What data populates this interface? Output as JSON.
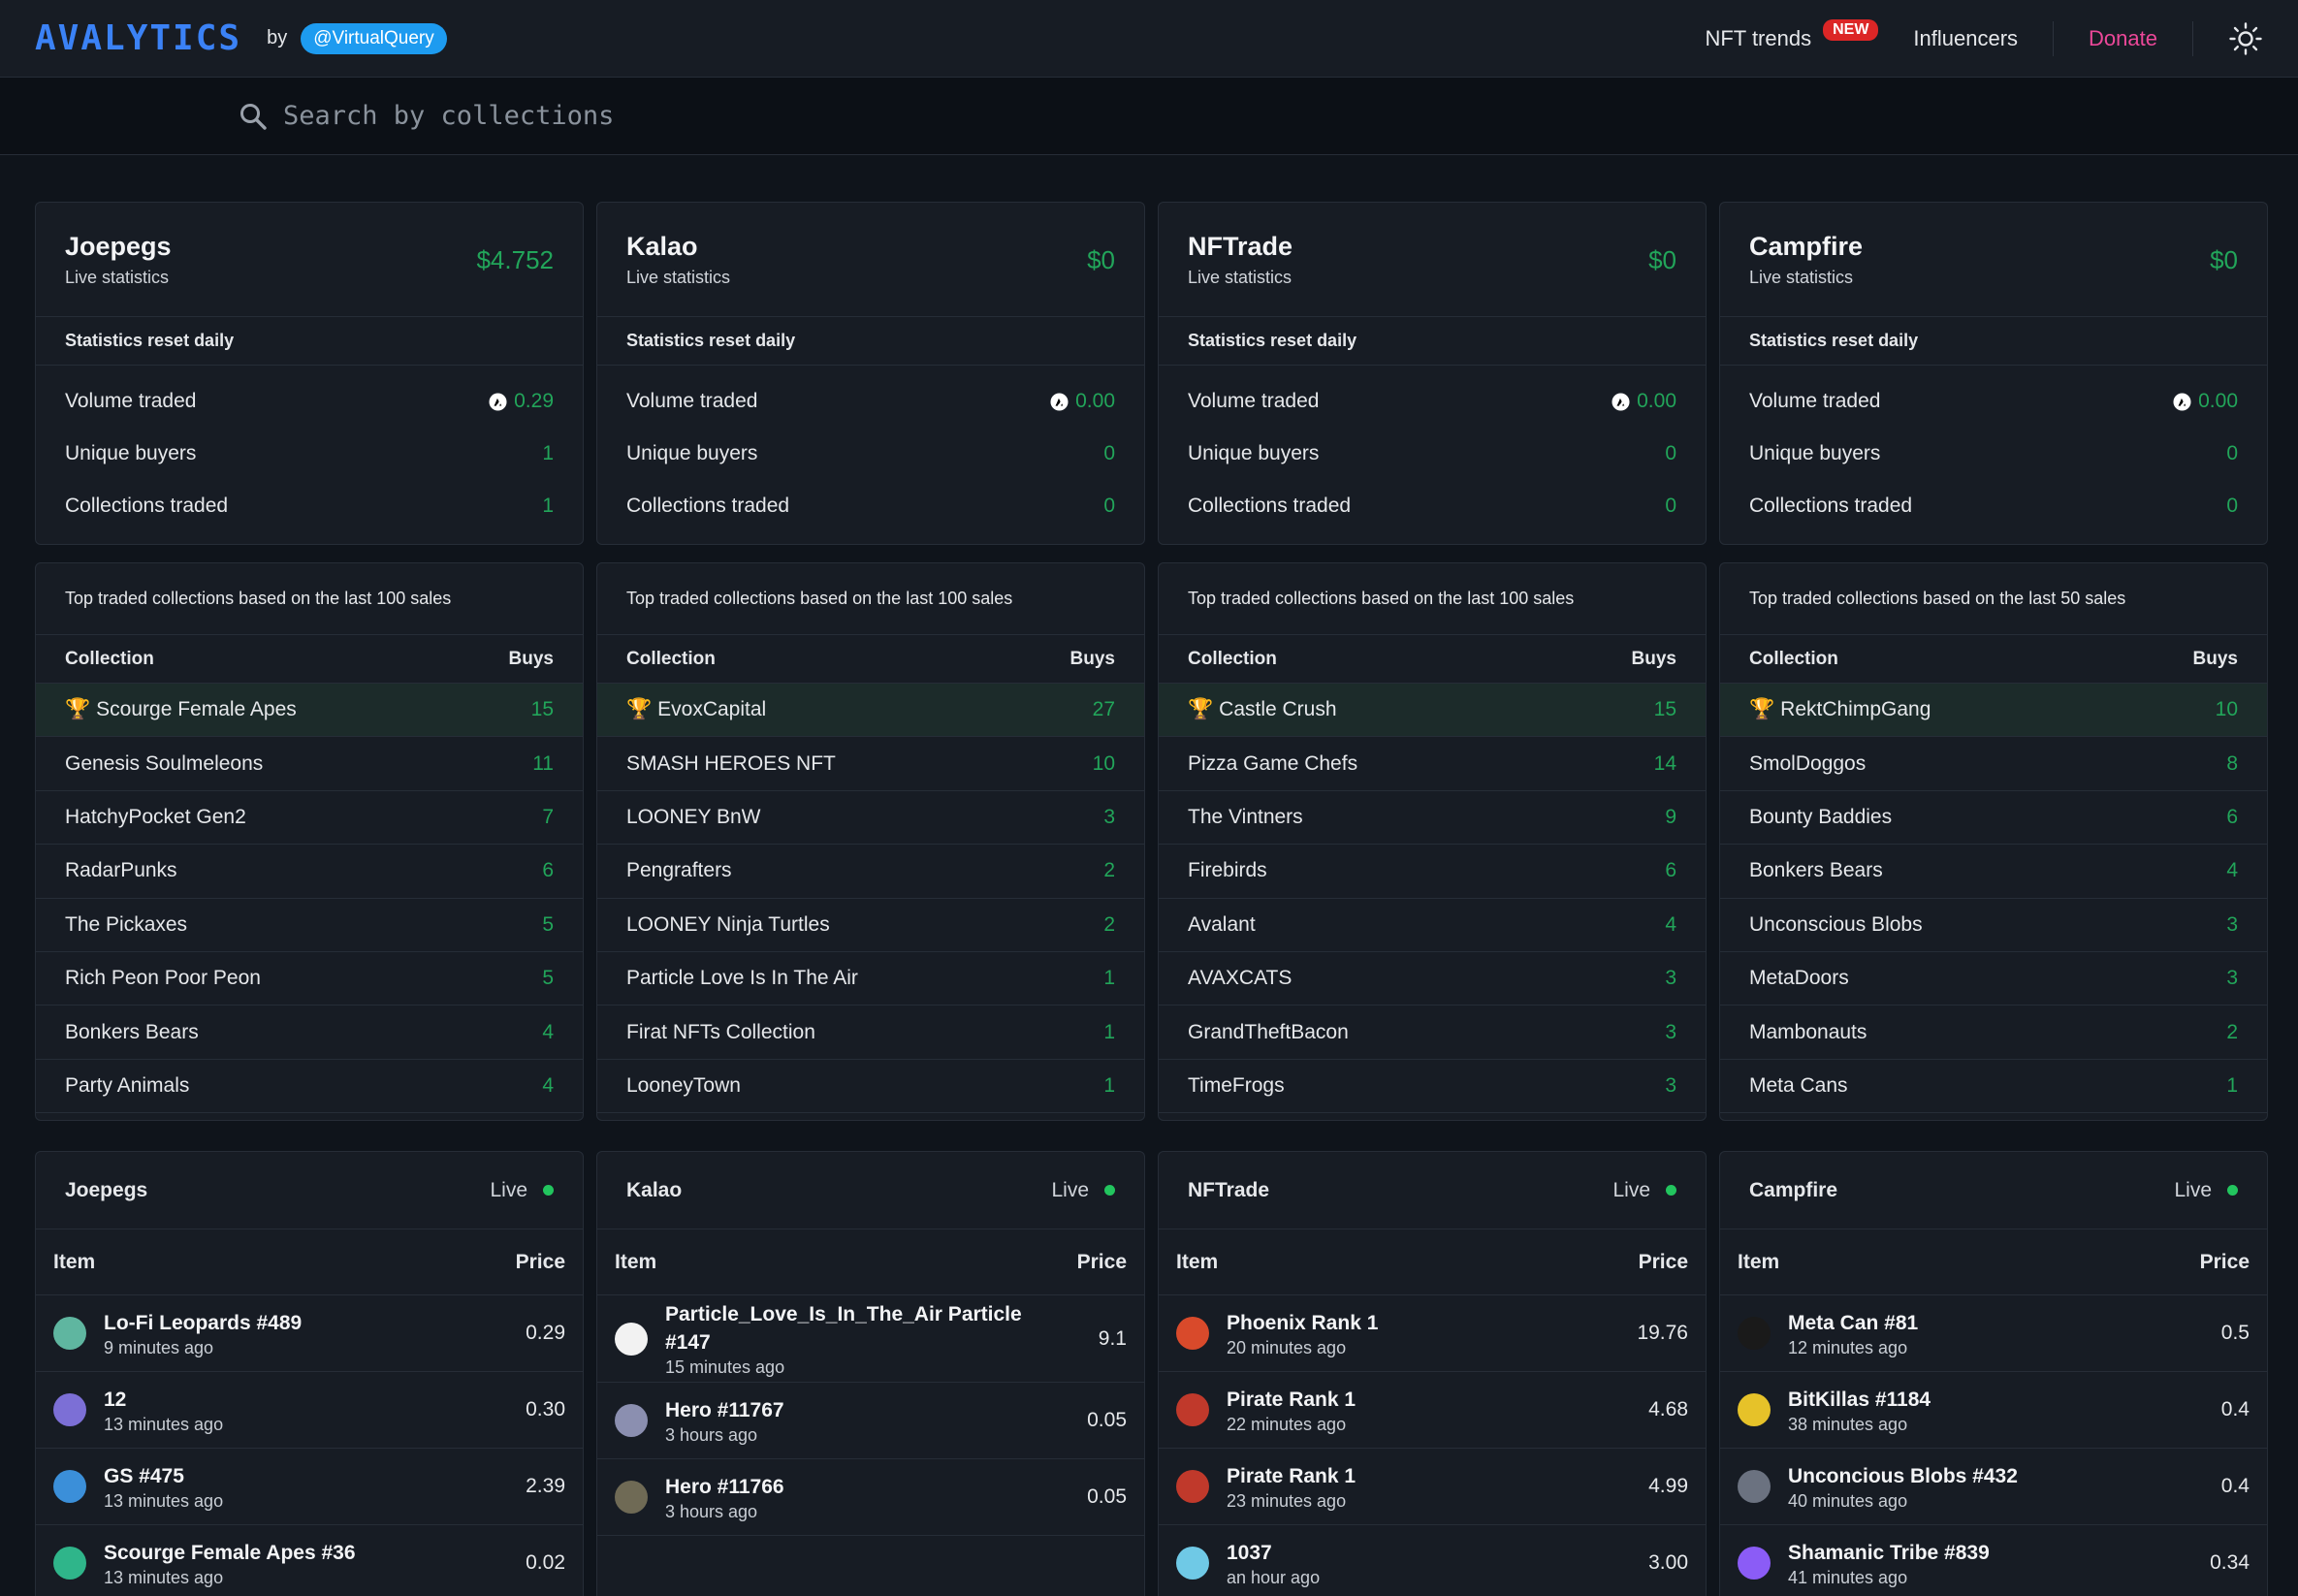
{
  "header": {
    "logo": "AVALYTICS",
    "by": "by",
    "handle": "@VirtualQuery",
    "nav": {
      "nft_trends": "NFT trends",
      "new_badge": "NEW",
      "influencers": "Influencers",
      "donate": "Donate"
    },
    "theme_icon": "sun-icon"
  },
  "search": {
    "placeholder": "Search by collections",
    "icon": "search-icon"
  },
  "stats": [
    {
      "name": "Joepegs",
      "sub": "Live statistics",
      "amount": "$4.752",
      "reset": "Statistics reset daily",
      "volume_label": "Volume traded",
      "volume": "0.29",
      "buyers_label": "Unique buyers",
      "buyers": "1",
      "collections_label": "Collections traded",
      "collections": "1"
    },
    {
      "name": "Kalao",
      "sub": "Live statistics",
      "amount": "$0",
      "reset": "Statistics reset daily",
      "volume_label": "Volume traded",
      "volume": "0.00",
      "buyers_label": "Unique buyers",
      "buyers": "0",
      "collections_label": "Collections traded",
      "collections": "0"
    },
    {
      "name": "NFTrade",
      "sub": "Live statistics",
      "amount": "$0",
      "reset": "Statistics reset daily",
      "volume_label": "Volume traded",
      "volume": "0.00",
      "buyers_label": "Unique buyers",
      "buyers": "0",
      "collections_label": "Collections traded",
      "collections": "0"
    },
    {
      "name": "Campfire",
      "sub": "Live statistics",
      "amount": "$0",
      "reset": "Statistics reset daily",
      "volume_label": "Volume traded",
      "volume": "0.00",
      "buyers_label": "Unique buyers",
      "buyers": "0",
      "collections_label": "Collections traded",
      "collections": "0"
    }
  ],
  "top": [
    {
      "caption": "Top traded collections based on the last 100 sales",
      "col_collection": "Collection",
      "col_buys": "Buys",
      "rows": [
        {
          "name": "Scourge Female Apes",
          "buys": "15"
        },
        {
          "name": "Genesis Soulmeleons",
          "buys": "11"
        },
        {
          "name": "HatchyPocket Gen2",
          "buys": "7"
        },
        {
          "name": "RadarPunks",
          "buys": "6"
        },
        {
          "name": "The Pickaxes",
          "buys": "5"
        },
        {
          "name": "Rich Peon Poor Peon",
          "buys": "5"
        },
        {
          "name": "Bonkers Bears",
          "buys": "4"
        },
        {
          "name": "Party Animals",
          "buys": "4"
        }
      ]
    },
    {
      "caption": "Top traded collections based on the last 100 sales",
      "col_collection": "Collection",
      "col_buys": "Buys",
      "rows": [
        {
          "name": "EvoxCapital",
          "buys": "27"
        },
        {
          "name": "SMASH HEROES NFT",
          "buys": "10"
        },
        {
          "name": "LOONEY BnW",
          "buys": "3"
        },
        {
          "name": "Pengrafters",
          "buys": "2"
        },
        {
          "name": "LOONEY Ninja Turtles",
          "buys": "2"
        },
        {
          "name": "Particle Love Is In The Air",
          "buys": "1"
        },
        {
          "name": "Firat NFTs Collection",
          "buys": "1"
        },
        {
          "name": "LooneyTown",
          "buys": "1"
        }
      ]
    },
    {
      "caption": "Top traded collections based on the last 100 sales",
      "col_collection": "Collection",
      "col_buys": "Buys",
      "rows": [
        {
          "name": "Castle Crush",
          "buys": "15"
        },
        {
          "name": "Pizza Game Chefs",
          "buys": "14"
        },
        {
          "name": "The Vintners",
          "buys": "9"
        },
        {
          "name": "Firebirds",
          "buys": "6"
        },
        {
          "name": "Avalant",
          "buys": "4"
        },
        {
          "name": "AVAXCATS",
          "buys": "3"
        },
        {
          "name": "GrandTheftBacon",
          "buys": "3"
        },
        {
          "name": "TimeFrogs",
          "buys": "3"
        }
      ]
    },
    {
      "caption": "Top traded collections based on the last 50 sales",
      "col_collection": "Collection",
      "col_buys": "Buys",
      "rows": [
        {
          "name": "RektChimpGang",
          "buys": "10"
        },
        {
          "name": "SmolDoggos",
          "buys": "8"
        },
        {
          "name": "Bounty Baddies",
          "buys": "6"
        },
        {
          "name": "Bonkers Bears",
          "buys": "4"
        },
        {
          "name": "Unconscious Blobs",
          "buys": "3"
        },
        {
          "name": "MetaDoors",
          "buys": "3"
        },
        {
          "name": "Mambonauts",
          "buys": "2"
        },
        {
          "name": "Meta Cans",
          "buys": "1"
        }
      ]
    }
  ],
  "live": [
    {
      "title": "Joepegs",
      "live": "Live",
      "col_item": "Item",
      "col_price": "Price",
      "items": [
        {
          "name": "Lo-Fi Leopards #489",
          "time": "9 minutes ago",
          "price": "0.29",
          "color": "#5fb6a0"
        },
        {
          "name": "12",
          "time": "13 minutes ago",
          "price": "0.30",
          "color": "#7c6fd6"
        },
        {
          "name": "GS #475",
          "time": "13 minutes ago",
          "price": "2.39",
          "color": "#3b8fd9"
        },
        {
          "name": "Scourge Female Apes #36",
          "time": "13 minutes ago",
          "price": "0.02",
          "color": "#2fb58a"
        }
      ]
    },
    {
      "title": "Kalao",
      "live": "Live",
      "col_item": "Item",
      "col_price": "Price",
      "items": [
        {
          "name": "Particle_Love_Is_In_The_Air Particle #147",
          "time": "15 minutes ago",
          "price": "9.1",
          "color": "#f2f2f2"
        },
        {
          "name": "Hero #11767",
          "time": "3 hours ago",
          "price": "0.05",
          "color": "#8b8fb0"
        },
        {
          "name": "Hero #11766",
          "time": "3 hours ago",
          "price": "0.05",
          "color": "#6f6a55"
        }
      ]
    },
    {
      "title": "NFTrade",
      "live": "Live",
      "col_item": "Item",
      "col_price": "Price",
      "items": [
        {
          "name": "Phoenix Rank 1",
          "time": "20 minutes ago",
          "price": "19.76",
          "color": "#d94a2b"
        },
        {
          "name": "Pirate Rank 1",
          "time": "22 minutes ago",
          "price": "4.68",
          "color": "#c0392b"
        },
        {
          "name": "Pirate Rank 1",
          "time": "23 minutes ago",
          "price": "4.99",
          "color": "#c0392b"
        },
        {
          "name": "1037",
          "time": "an hour ago",
          "price": "3.00",
          "color": "#6fc9e6"
        }
      ]
    },
    {
      "title": "Campfire",
      "live": "Live",
      "col_item": "Item",
      "col_price": "Price",
      "items": [
        {
          "name": "Meta Can #81",
          "time": "12 minutes ago",
          "price": "0.5",
          "color": "#1a1a1a"
        },
        {
          "name": "BitKillas #1184",
          "time": "38 minutes ago",
          "price": "0.4",
          "color": "#e6c229"
        },
        {
          "name": "Unconcious Blobs #432",
          "time": "40 minutes ago",
          "price": "0.4",
          "color": "#6b7280"
        },
        {
          "name": "Shamanic Tribe #839",
          "time": "41 minutes ago",
          "price": "0.34",
          "color": "#8b5cf6"
        }
      ]
    }
  ]
}
